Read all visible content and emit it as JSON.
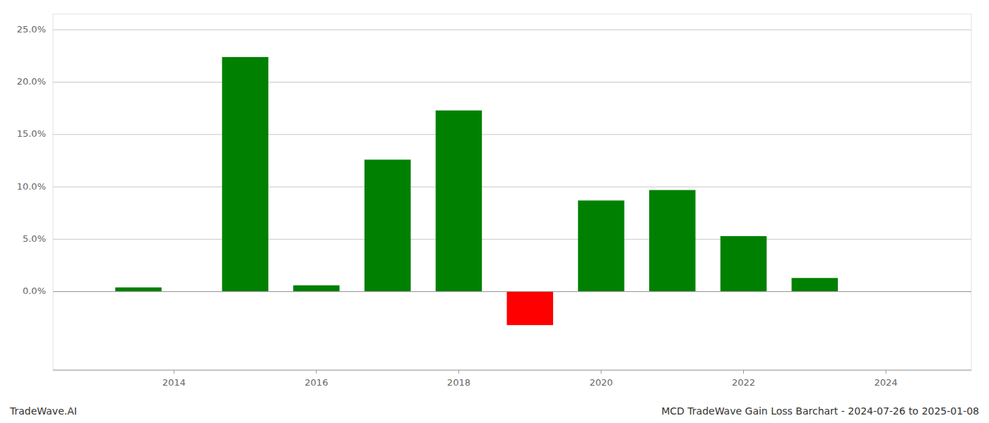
{
  "chart_data": {
    "type": "bar",
    "x": [
      2013.5,
      2015.0,
      2016.0,
      2017.0,
      2018.0,
      2019.0,
      2020.0,
      2021.0,
      2022.0,
      2023.0
    ],
    "values": [
      0.004,
      0.224,
      0.006,
      0.126,
      0.173,
      -0.032,
      0.087,
      0.097,
      0.053,
      0.013
    ],
    "colors": [
      "#008000",
      "#008000",
      "#008000",
      "#008000",
      "#008000",
      "#ff0000",
      "#008000",
      "#008000",
      "#008000",
      "#008000"
    ],
    "xlim": [
      2012.3,
      2025.2
    ],
    "xticks": [
      2014,
      2016,
      2018,
      2020,
      2022,
      2024
    ],
    "ylim": [
      -0.075,
      0.265
    ],
    "yticks": [
      {
        "value": 0.0,
        "label": "0.0%"
      },
      {
        "value": 0.05,
        "label": "5.0%"
      },
      {
        "value": 0.1,
        "label": "10.0%"
      },
      {
        "value": 0.15,
        "label": "15.0%"
      },
      {
        "value": 0.2,
        "label": "20.0%"
      },
      {
        "value": 0.25,
        "label": "25.0%"
      }
    ],
    "grid": true,
    "annotations": [
      "TradeWave.AI",
      "MCD TradeWave Gain Loss Barchart - 2024-07-26 to 2025-01-08"
    ]
  }
}
